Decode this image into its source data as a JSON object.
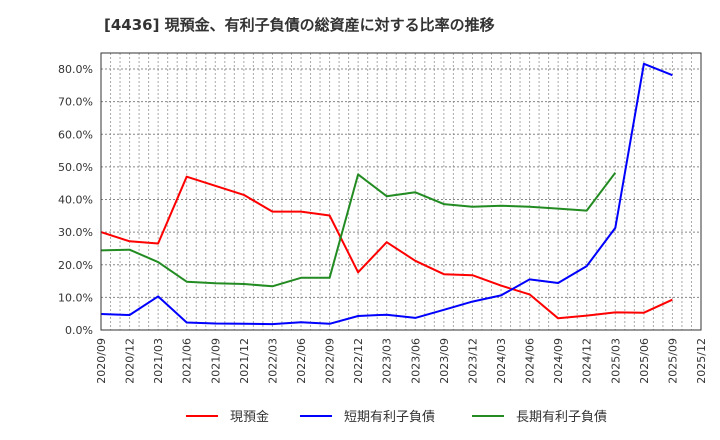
{
  "title": "[4436]  現預金、有利子負債の総資産に対する比率の推移",
  "colors": {
    "cash": "#ff0000",
    "short_debt": "#0000ff",
    "long_debt": "#228b22",
    "grid": "#aaaaaa",
    "axis": "#333333"
  },
  "legend": [
    {
      "label": "現預金",
      "color": "#ff0000"
    },
    {
      "label": "短期有利子負債",
      "color": "#0000ff"
    },
    {
      "label": "長期有利子負債",
      "color": "#228b22"
    }
  ],
  "chart_data": {
    "type": "line",
    "title": "[4436]  現預金、有利子負債の総資産に対する比率の推移",
    "xlabel": "",
    "ylabel": "",
    "ylim": [
      0,
      85
    ],
    "yticks": [
      "0.0%",
      "10.0%",
      "20.0%",
      "30.0%",
      "40.0%",
      "50.0%",
      "60.0%",
      "70.0%",
      "80.0%"
    ],
    "grid": true,
    "legend_position": "bottom",
    "categories": [
      "2020/09",
      "2020/12",
      "2021/03",
      "2021/06",
      "2021/09",
      "2021/12",
      "2022/03",
      "2022/06",
      "2022/09",
      "2022/12",
      "2023/03",
      "2023/06",
      "2023/09",
      "2023/12",
      "2024/03",
      "2024/06",
      "2024/09",
      "2024/12",
      "2025/03",
      "2025/06",
      "2025/09",
      "2025/12"
    ],
    "series": [
      {
        "name": "現預金",
        "color": "#ff0000",
        "values": [
          30.0,
          27.2,
          26.5,
          47.0,
          44.2,
          41.4,
          36.3,
          36.3,
          35.1,
          17.7,
          26.9,
          21.2,
          17.1,
          16.8,
          13.6,
          10.9,
          3.6,
          4.4,
          5.4,
          5.3,
          9.3,
          null
        ]
      },
      {
        "name": "短期有利子負債",
        "color": "#0000ff",
        "values": [
          4.9,
          4.6,
          10.3,
          2.3,
          2.0,
          1.9,
          1.8,
          2.4,
          1.9,
          4.3,
          4.7,
          3.7,
          6.2,
          8.7,
          10.6,
          15.5,
          14.4,
          19.6,
          31.3,
          81.6,
          78.1,
          null
        ]
      },
      {
        "name": "長期有利子負債",
        "color": "#228b22",
        "values": [
          24.4,
          24.6,
          20.8,
          14.8,
          14.3,
          14.1,
          13.4,
          16.0,
          16.0,
          47.7,
          41.0,
          42.2,
          38.6,
          37.8,
          38.1,
          37.8,
          37.2,
          36.6,
          48.2,
          null,
          null,
          null
        ]
      }
    ]
  }
}
